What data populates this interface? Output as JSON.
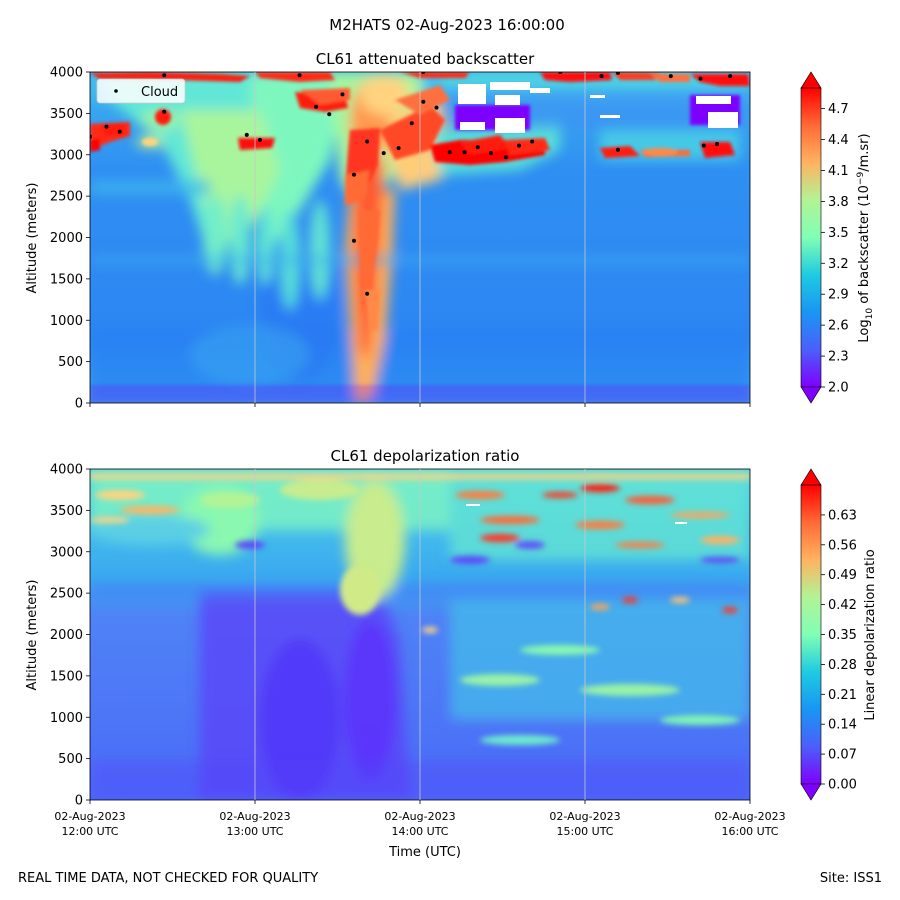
{
  "figure": {
    "suptitle": "M2HATS 02-Aug-2023 16:00:00",
    "footer_left": "REAL TIME DATA, NOT CHECKED FOR QUALITY",
    "footer_right": "Site: ISS1"
  },
  "chart_data": [
    {
      "type": "heatmap",
      "title": "CL61 attenuated backscatter",
      "ylabel": "Altitude (meters)",
      "ylim": [
        0,
        4000
      ],
      "yticks": [
        0,
        500,
        1000,
        1500,
        2000,
        2500,
        3000,
        3500,
        4000
      ],
      "xticks": [
        "12:00",
        "13:00",
        "14:00",
        "15:00",
        "16:00"
      ],
      "colorbar": {
        "label": "Log10 of backscatter (10^-9/m.sr)",
        "label_main": "Log",
        "label_sub": "10",
        "label_mid": " of backscatter (10",
        "label_sup": "−9",
        "label_end": "/m.sr)",
        "range": [
          2.0,
          4.9
        ],
        "ticks": [
          "2.0",
          "2.3",
          "2.6",
          "2.9",
          "3.2",
          "3.5",
          "3.8",
          "4.1",
          "4.4",
          "4.7"
        ],
        "colormap": "rainbow"
      },
      "legend": {
        "label": "Cloud",
        "placement": "upper-left"
      },
      "cloud_points": [
        {
          "t": 12.0,
          "alt": 3220
        },
        {
          "t": 12.1,
          "alt": 3340
        },
        {
          "t": 12.18,
          "alt": 3280
        },
        {
          "t": 12.45,
          "alt": 3960
        },
        {
          "t": 12.45,
          "alt": 3520
        },
        {
          "t": 12.95,
          "alt": 3240
        },
        {
          "t": 13.03,
          "alt": 3180
        },
        {
          "t": 13.27,
          "alt": 3960
        },
        {
          "t": 13.37,
          "alt": 3580
        },
        {
          "t": 13.45,
          "alt": 3490
        },
        {
          "t": 13.53,
          "alt": 3730
        },
        {
          "t": 13.6,
          "alt": 2760
        },
        {
          "t": 13.6,
          "alt": 1960
        },
        {
          "t": 13.68,
          "alt": 3160
        },
        {
          "t": 13.68,
          "alt": 1320
        },
        {
          "t": 13.78,
          "alt": 3020
        },
        {
          "t": 13.87,
          "alt": 3080
        },
        {
          "t": 13.95,
          "alt": 3380
        },
        {
          "t": 14.02,
          "alt": 4000
        },
        {
          "t": 14.02,
          "alt": 3640
        },
        {
          "t": 14.1,
          "alt": 3570
        },
        {
          "t": 14.18,
          "alt": 3030
        },
        {
          "t": 14.27,
          "alt": 3030
        },
        {
          "t": 14.35,
          "alt": 3090
        },
        {
          "t": 14.43,
          "alt": 3020
        },
        {
          "t": 14.52,
          "alt": 2970
        },
        {
          "t": 14.6,
          "alt": 3110
        },
        {
          "t": 14.68,
          "alt": 3160
        },
        {
          "t": 14.85,
          "alt": 4000
        },
        {
          "t": 15.1,
          "alt": 3950
        },
        {
          "t": 15.2,
          "alt": 3060
        },
        {
          "t": 15.2,
          "alt": 3990
        },
        {
          "t": 15.52,
          "alt": 3950
        },
        {
          "t": 15.7,
          "alt": 3920
        },
        {
          "t": 15.72,
          "alt": 3110
        },
        {
          "t": 15.8,
          "alt": 3130
        },
        {
          "t": 15.88,
          "alt": 3950
        }
      ]
    },
    {
      "type": "heatmap",
      "title": "CL61 depolarization ratio",
      "ylabel": "Altitude (meters)",
      "xlabel": "Time (UTC)",
      "ylim": [
        0,
        4000
      ],
      "yticks": [
        0,
        500,
        1000,
        1500,
        2000,
        2500,
        3000,
        3500,
        4000
      ],
      "xticks": [
        {
          "date": "02-Aug-2023",
          "time": "12:00 UTC"
        },
        {
          "date": "02-Aug-2023",
          "time": "13:00 UTC"
        },
        {
          "date": "02-Aug-2023",
          "time": "14:00 UTC"
        },
        {
          "date": "02-Aug-2023",
          "time": "15:00 UTC"
        },
        {
          "date": "02-Aug-2023",
          "time": "16:00 UTC"
        }
      ],
      "colorbar": {
        "label": "Linear depolarization ratio",
        "range": [
          0.0,
          0.7
        ],
        "ticks": [
          "0.00",
          "0.07",
          "0.14",
          "0.21",
          "0.28",
          "0.35",
          "0.42",
          "0.49",
          "0.56",
          "0.63"
        ],
        "colormap": "rainbow"
      }
    }
  ]
}
